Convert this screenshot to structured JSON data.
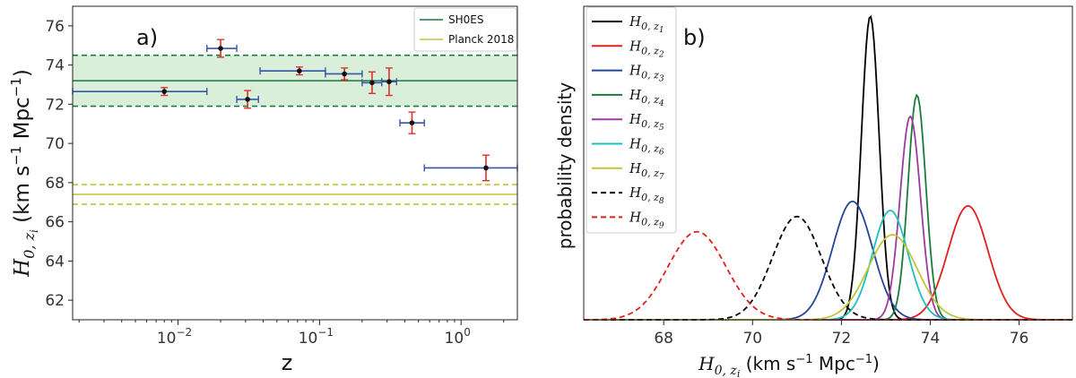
{
  "chart_data": [
    {
      "type": "scatter",
      "panel_label": "a)",
      "xlabel": "z",
      "ylabel": "H",
      "ylabel_sub": "0, z",
      "ylabel_sub_i": "i",
      "ylabel_units": " (km s",
      "ylabel_units_exp": "−1",
      "ylabel_units_mid": " Mpc",
      "ylabel_units_exp2": "−1",
      "ylabel_units_end": ")",
      "xscale": "log",
      "xlim": [
        0.0018,
        2.5
      ],
      "ylim": [
        61,
        77
      ],
      "yticks": [
        62,
        64,
        66,
        68,
        70,
        72,
        74,
        76
      ],
      "xticks": [
        {
          "value": 0.01,
          "base": "10",
          "exp": "−2"
        },
        {
          "value": 0.1,
          "base": "10",
          "exp": "−1"
        },
        {
          "value": 1,
          "base": "10",
          "exp": "0"
        }
      ],
      "points": [
        {
          "z": 0.008,
          "zlo": 0.0018,
          "zhi": 0.016,
          "h": 72.65,
          "herr": 0.2
        },
        {
          "z": 0.02,
          "zlo": 0.016,
          "zhi": 0.026,
          "h": 74.85,
          "herr": 0.45
        },
        {
          "z": 0.031,
          "zlo": 0.026,
          "zhi": 0.037,
          "h": 72.25,
          "herr": 0.45
        },
        {
          "z": 0.072,
          "zlo": 0.038,
          "zhi": 0.11,
          "h": 73.7,
          "herr": 0.2
        },
        {
          "z": 0.15,
          "zlo": 0.11,
          "zhi": 0.2,
          "h": 73.55,
          "herr": 0.3
        },
        {
          "z": 0.235,
          "zlo": 0.2,
          "zhi": 0.275,
          "h": 73.1,
          "herr": 0.55
        },
        {
          "z": 0.31,
          "zlo": 0.275,
          "zhi": 0.35,
          "h": 73.15,
          "herr": 0.7
        },
        {
          "z": 0.45,
          "zlo": 0.37,
          "zhi": 0.55,
          "h": 71.05,
          "herr": 0.55
        },
        {
          "z": 1.5,
          "zlo": 0.55,
          "zhi": 2.5,
          "h": 68.75,
          "herr": 0.65
        }
      ],
      "bands": [
        {
          "name": "SH0ES",
          "center": 73.2,
          "lo": 71.9,
          "hi": 74.5,
          "color": "#1a7a3c",
          "fill": "#d9efd9"
        },
        {
          "name": "Planck 2018",
          "center": 67.4,
          "lo": 66.9,
          "hi": 67.9,
          "color": "#c3c43a",
          "fill": "none"
        }
      ],
      "point_color": "#111111",
      "xerr_color": "#3855a8",
      "yerr_color": "#e0302a"
    },
    {
      "type": "line",
      "panel_label": "b)",
      "xlabel": "H",
      "xlabel_sub": "0, z",
      "xlabel_sub_i": "i",
      "xlabel_units": " (km s",
      "xlabel_units_exp": "−1",
      "xlabel_units_mid": " Mpc",
      "xlabel_units_exp2": "−1",
      "xlabel_units_end": ")",
      "ylabel": "probability density",
      "xlim": [
        66.2,
        77.2
      ],
      "xticks": [
        68,
        70,
        72,
        74,
        76
      ],
      "series": [
        {
          "name": "H",
          "sub": "0, z",
          "subsub": "1",
          "mu": 72.65,
          "sigma": 0.2,
          "peak": 1.0,
          "color": "#000000",
          "dash": false
        },
        {
          "name": "H",
          "sub": "0, z",
          "subsub": "2",
          "mu": 74.85,
          "sigma": 0.45,
          "peak": 0.375,
          "color": "#e0201a",
          "dash": false
        },
        {
          "name": "H",
          "sub": "0, z",
          "subsub": "3",
          "mu": 72.25,
          "sigma": 0.45,
          "peak": 0.39,
          "color": "#24449a",
          "dash": false
        },
        {
          "name": "H",
          "sub": "0, z",
          "subsub": "4",
          "mu": 73.7,
          "sigma": 0.2,
          "peak": 0.74,
          "color": "#1a7a3c",
          "dash": false
        },
        {
          "name": "H",
          "sub": "0, z",
          "subsub": "5",
          "mu": 73.55,
          "sigma": 0.23,
          "peak": 0.67,
          "color": "#9b3aa0",
          "dash": false
        },
        {
          "name": "H",
          "sub": "0, z",
          "subsub": "6",
          "mu": 73.1,
          "sigma": 0.4,
          "peak": 0.36,
          "color": "#1fbfbf",
          "dash": false
        },
        {
          "name": "H",
          "sub": "0, z",
          "subsub": "7",
          "mu": 73.15,
          "sigma": 0.55,
          "peak": 0.28,
          "color": "#c3c43a",
          "dash": false
        },
        {
          "name": "H",
          "sub": "0, z",
          "subsub": "8",
          "mu": 71.0,
          "sigma": 0.55,
          "peak": 0.34,
          "color": "#000000",
          "dash": true
        },
        {
          "name": "H",
          "sub": "0, z",
          "subsub": "9",
          "mu": 68.75,
          "sigma": 0.65,
          "peak": 0.29,
          "color": "#e0201a",
          "dash": true
        }
      ]
    }
  ]
}
